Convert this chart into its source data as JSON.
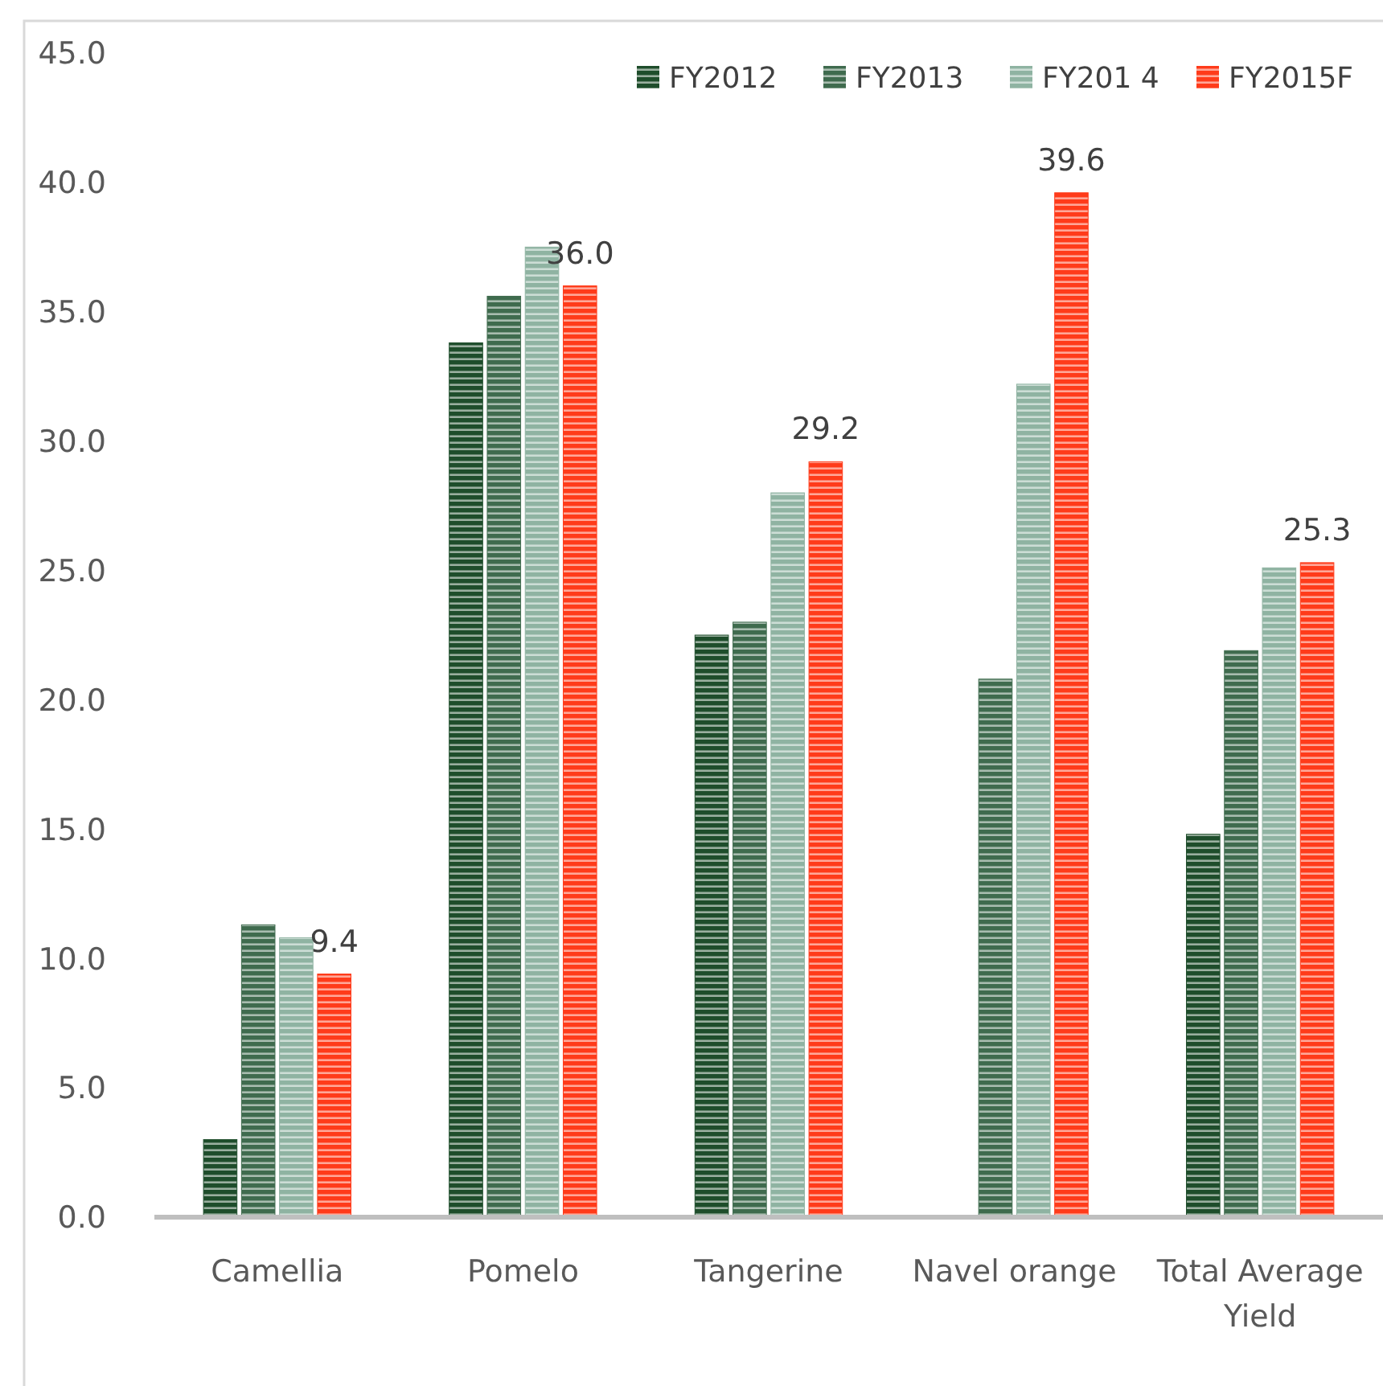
{
  "chart_data": {
    "type": "bar",
    "categories": [
      "Camellia",
      "Pomelo",
      "Tangerine",
      "Navel orange",
      "Total Average Yield"
    ],
    "series": [
      {
        "name": "FY2012",
        "color": "#1e4d2b",
        "values": [
          3.0,
          33.8,
          22.5,
          null,
          14.8
        ]
      },
      {
        "name": "FY2013",
        "color": "#3f6b4e",
        "values": [
          11.3,
          35.6,
          23.0,
          20.8,
          21.9
        ]
      },
      {
        "name": "FY201 4",
        "color": "#8fb3a2",
        "values": [
          10.8,
          37.5,
          28.0,
          32.2,
          25.1
        ]
      },
      {
        "name": "FY2015F",
        "color": "#ff3b1a",
        "values": [
          9.4,
          36.0,
          29.2,
          39.6,
          25.3
        ],
        "value_labels": [
          "9.4",
          "36.0",
          "29.2",
          "39.6",
          "25.3"
        ]
      }
    ],
    "ylim": [
      0,
      45
    ],
    "yticks": [
      {
        "value": 0,
        "label": "0.0"
      },
      {
        "value": 5,
        "label": "5.0"
      },
      {
        "value": 10,
        "label": "10.0"
      },
      {
        "value": 15,
        "label": "15.0"
      },
      {
        "value": 20,
        "label": "20.0"
      },
      {
        "value": 25,
        "label": "25.0"
      },
      {
        "value": 30,
        "label": "30.0"
      },
      {
        "value": 35,
        "label": "35.0"
      },
      {
        "value": 40,
        "label": "40.0"
      },
      {
        "value": 45,
        "label": "45.0"
      }
    ],
    "grid": false,
    "legend": "top right"
  }
}
